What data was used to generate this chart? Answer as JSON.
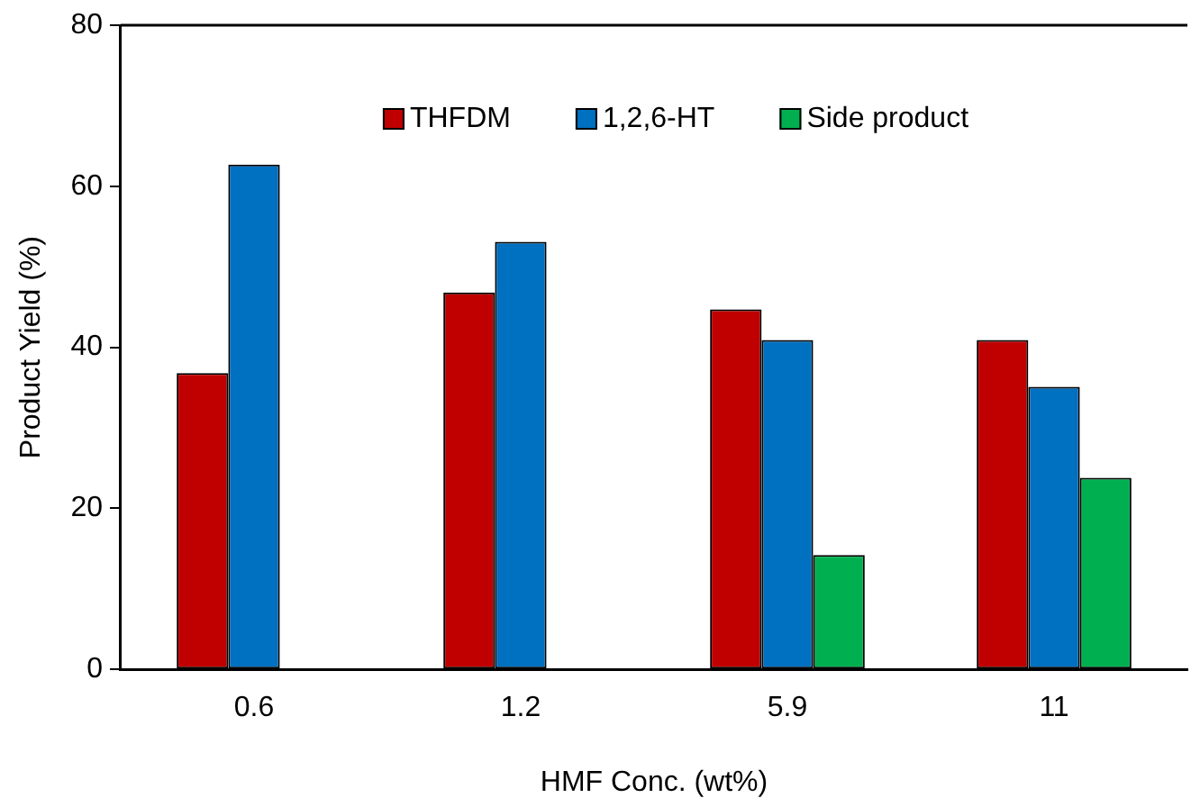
{
  "chart_data": {
    "type": "bar",
    "xlabel": "HMF Conc. (wt%)",
    "ylabel": "Product Yield (%)",
    "categories": [
      "0.6",
      "1.2",
      "5.9",
      "11"
    ],
    "series": [
      {
        "name": "THFDM",
        "color": "#c00000",
        "values": [
          36.8,
          46.8,
          44.7,
          40.9
        ]
      },
      {
        "name": "1,2,6-HT",
        "color": "#0070c0",
        "values": [
          62.7,
          53.1,
          40.9,
          35.1
        ]
      },
      {
        "name": "Side product",
        "color": "#00b050",
        "values": [
          null,
          null,
          14.2,
          23.8
        ]
      }
    ],
    "ylim": [
      0,
      80
    ],
    "yticks": [
      0,
      20,
      40,
      60,
      80
    ],
    "grid": false,
    "legend": "top"
  }
}
